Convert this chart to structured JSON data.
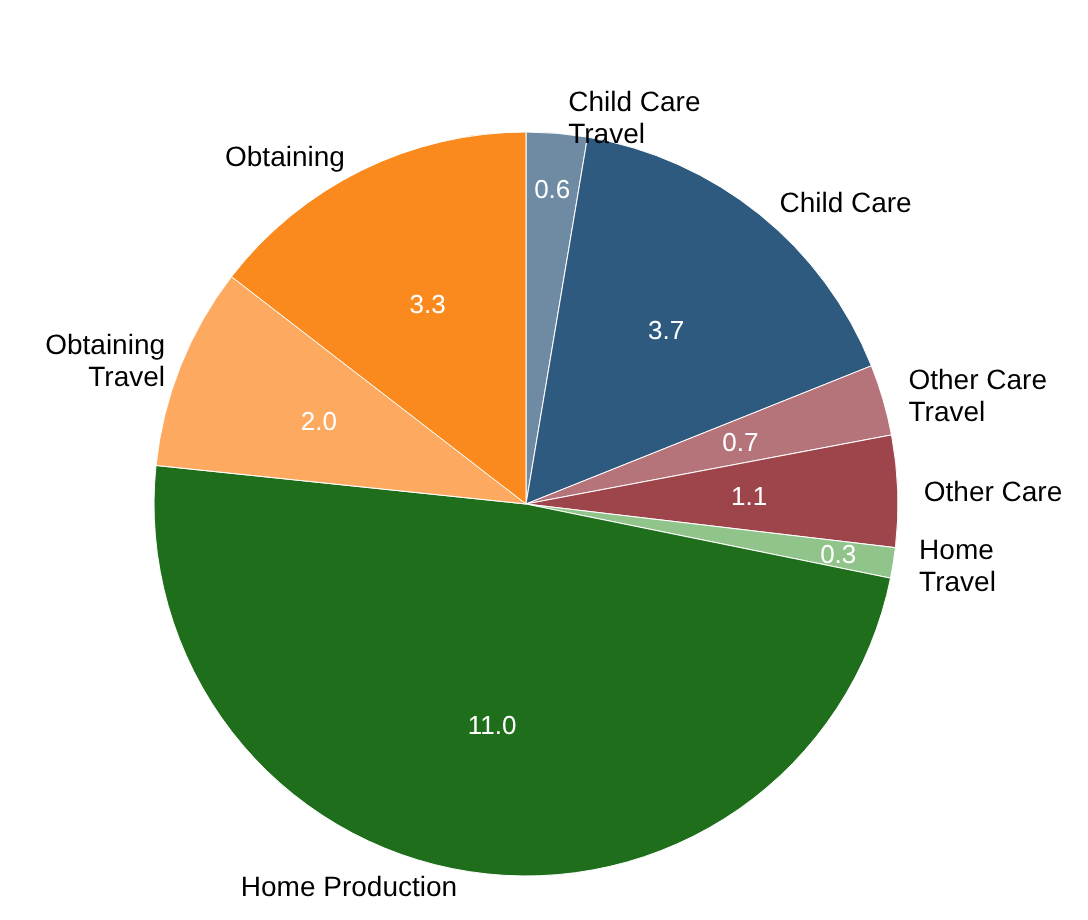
{
  "chart_data": {
    "type": "pie",
    "categories": [
      "Child Care\nTravel",
      "Child Care",
      "Other Care\nTravel",
      "Other Care",
      "Home\nTravel",
      "Home Production",
      "Obtaining\nTravel",
      "Obtaining"
    ],
    "values": [
      0.6,
      3.7,
      0.7,
      1.1,
      0.3,
      11.0,
      2.0,
      3.3
    ],
    "colors": [
      "#6f8aa3",
      "#2e5a80",
      "#b5737a",
      "#9e454c",
      "#90c48a",
      "#1f6e1c",
      "#fdaa60",
      "#fb8a1e"
    ],
    "value_labels": [
      "0.6",
      "3.7",
      "0.7",
      "1.1",
      "0.3",
      "11.0",
      "2.0",
      "3.3"
    ],
    "legend": false
  }
}
